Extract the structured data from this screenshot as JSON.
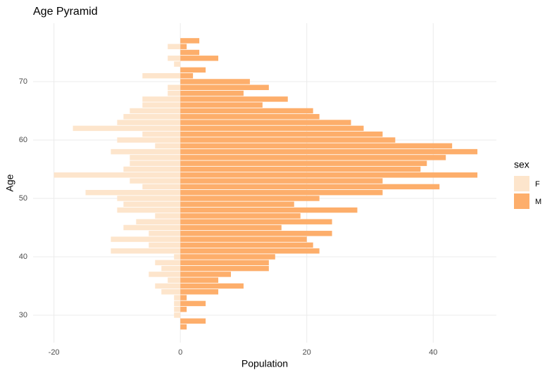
{
  "chart_data": {
    "type": "bar",
    "orientation": "horizontal",
    "title": "Age Pyramid",
    "x_label": "Population",
    "y_label": "Age",
    "legend_title": "sex",
    "legend_position": "right",
    "grid": true,
    "y": [
      28,
      29,
      30,
      31,
      32,
      33,
      34,
      35,
      36,
      37,
      38,
      39,
      40,
      41,
      42,
      43,
      44,
      45,
      46,
      47,
      48,
      49,
      50,
      51,
      52,
      53,
      54,
      55,
      56,
      57,
      58,
      59,
      60,
      61,
      62,
      63,
      64,
      65,
      66,
      67,
      68,
      69,
      70,
      71,
      72,
      73,
      74,
      75,
      76,
      77
    ],
    "series": [
      {
        "name": "F",
        "color": "#fde5cc",
        "values": [
          0,
          0,
          -1,
          -1,
          -1,
          -1,
          -3,
          -4,
          -2,
          -5,
          -3,
          -4,
          -1,
          -11,
          -5,
          -11,
          -5,
          -9,
          -7,
          -4,
          -10,
          -9,
          -10,
          -15,
          -6,
          -8,
          -20,
          -9,
          -8,
          -8,
          -11,
          -4,
          -10,
          -6,
          -17,
          -10,
          -9,
          -8,
          -6,
          -6,
          -2,
          -2,
          0,
          -6,
          0,
          -1,
          -2,
          0,
          -2,
          0
        ]
      },
      {
        "name": "M",
        "color": "#fdae6b",
        "values": [
          1,
          4,
          0,
          1,
          4,
          1,
          6,
          10,
          6,
          8,
          14,
          14,
          15,
          22,
          21,
          20,
          24,
          16,
          24,
          19,
          28,
          18,
          22,
          32,
          41,
          32,
          47,
          38,
          39,
          42,
          47,
          43,
          34,
          32,
          29,
          27,
          22,
          21,
          13,
          17,
          10,
          14,
          11,
          2,
          4,
          0,
          6,
          3,
          1,
          3
        ]
      }
    ],
    "xlim": [
      -23.3,
      50
    ],
    "xticks": [
      -20,
      0,
      20,
      40
    ],
    "ylim": [
      25.3,
      80
    ],
    "yticks": [
      30,
      40,
      50,
      60,
      70
    ]
  }
}
